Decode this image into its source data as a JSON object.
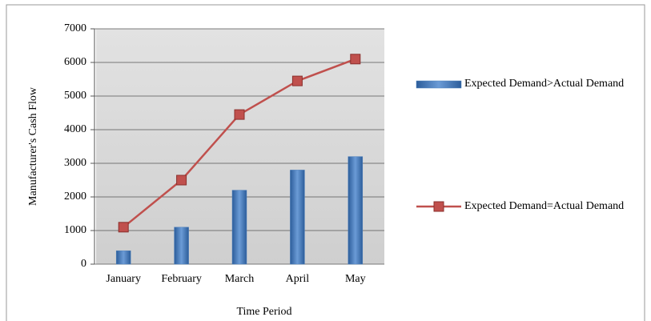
{
  "chart_data": {
    "type": "combo",
    "categories": [
      "January",
      "February",
      "March",
      "April",
      "May"
    ],
    "series": [
      {
        "name": "Expected Demand>Actual Demand",
        "type": "bar",
        "color": "#4f81bd",
        "values": [
          400,
          1100,
          2200,
          2800,
          3200
        ]
      },
      {
        "name": "Expected Demand=Actual Demand",
        "type": "line",
        "color": "#c0504d",
        "values": [
          1100,
          2500,
          4450,
          5450,
          6100
        ]
      }
    ],
    "y_label": "Manufacturer's Cash Flow",
    "x_label": "Time Period",
    "ylim": [
      0,
      7000
    ],
    "yticks": [
      0,
      1000,
      2000,
      3000,
      4000,
      5000,
      6000,
      7000
    ],
    "grid": true
  }
}
